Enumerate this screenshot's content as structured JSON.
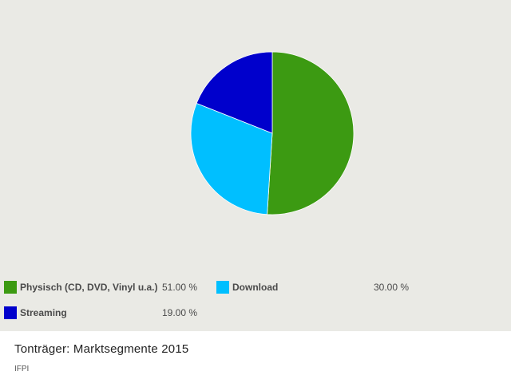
{
  "chart_data": {
    "type": "pie",
    "title": "Tonträger: Marktsegmente 2015",
    "source": "IFPI",
    "slices": [
      {
        "label": "Physisch (CD, DVD, Vinyl u.a.)",
        "value": 51.0,
        "display": "51.00 %",
        "color": "#3c9a12"
      },
      {
        "label": "Download",
        "value": 30.0,
        "display": "30.00 %",
        "color": "#00bfff"
      },
      {
        "label": "Streaming",
        "value": 19.0,
        "display": "19.00 %",
        "color": "#0000cc"
      }
    ],
    "legend_position": "bottom-left"
  }
}
